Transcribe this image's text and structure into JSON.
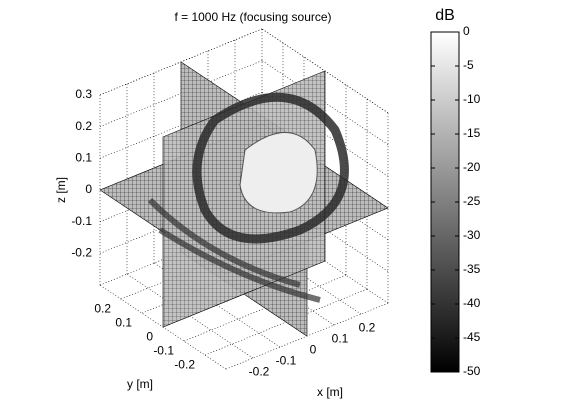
{
  "chart_data": {
    "type": "slice3d",
    "title": "f = 1000 Hz (focusing source)",
    "xlabel": "x [m]",
    "ylabel": "y [m]",
    "zlabel": "z [m]",
    "xlim": [
      -0.3,
      0.3
    ],
    "ylim": [
      -0.3,
      0.3
    ],
    "zlim": [
      -0.3,
      0.3
    ],
    "xticks": [
      -0.2,
      -0.1,
      0,
      0.1,
      0.2
    ],
    "yticks": [
      -0.2,
      -0.1,
      0,
      0.1,
      0.2
    ],
    "zticks": [
      -0.2,
      -0.1,
      0,
      0.1,
      0.2,
      0.3
    ],
    "grid": true,
    "colormap": "gray",
    "colorbar": {
      "label": "dB",
      "clim": [
        -50,
        0
      ],
      "ticks": [
        -50,
        -45,
        -40,
        -35,
        -30,
        -25,
        -20,
        -15,
        -10,
        -5,
        0
      ]
    }
  }
}
